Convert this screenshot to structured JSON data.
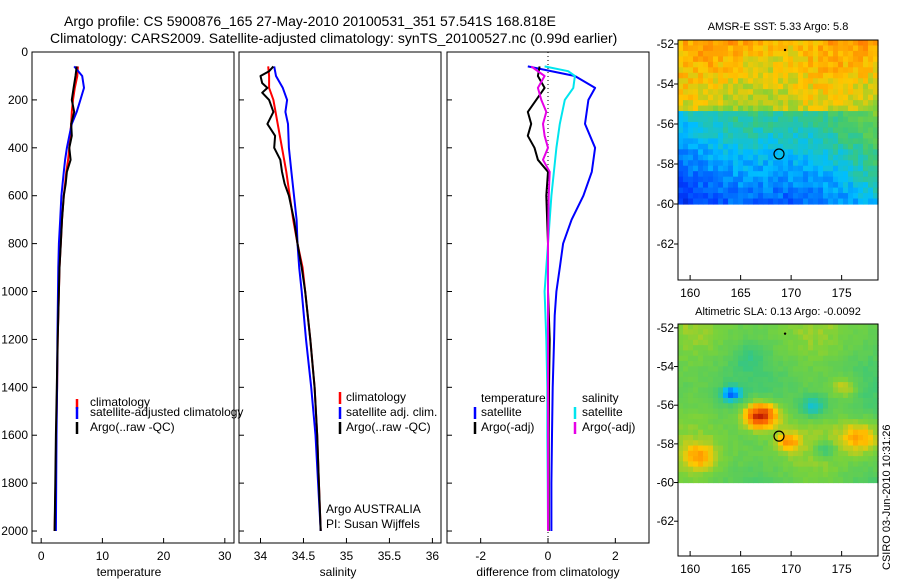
{
  "header": {
    "line1": "Argo profile: CS 5900876_165 27-May-2010 20100531_351 57.541S 168.818E",
    "line2": "Climatology: CARS2009. Satellite-adjusted climatology: synTS_20100527.nc (0.99d earlier)"
  },
  "side_label": "CSIRO 03-Jun-2010 10:31:26",
  "depth_ticks": [
    "0",
    "200",
    "400",
    "600",
    "800",
    "1000",
    "1200",
    "1400",
    "1600",
    "1800",
    "2000"
  ],
  "colors": {
    "climatology": "#ff0000",
    "satellite": "#0000ff",
    "argo": "#000000",
    "sat_salinity": "#00e5ee",
    "argo_salinity": "#e600e6"
  },
  "chart_data": [
    {
      "id": "temperature",
      "type": "line",
      "xlabel": "temperature",
      "xlim": [
        -1.5,
        31.5
      ],
      "ylim": [
        2050,
        0
      ],
      "xticks": [
        "0",
        "10",
        "20",
        "30"
      ],
      "legend": [
        "climatology",
        "satellite-adjusted climatology",
        "Argo(..raw -QC)"
      ],
      "series": [
        {
          "name": "climatology",
          "depth": [
            60,
            100,
            150,
            200,
            250,
            300,
            350,
            400,
            450,
            500,
            550,
            600,
            700,
            800,
            900,
            1000,
            1200,
            1400,
            1600,
            1800,
            2000
          ],
          "values": [
            6.0,
            5.9,
            5.5,
            5.2,
            5.0,
            4.9,
            4.7,
            4.6,
            4.4,
            4.1,
            3.9,
            3.7,
            3.4,
            3.2,
            3.0,
            2.9,
            2.7,
            2.6,
            2.45,
            2.35,
            2.2
          ]
        },
        {
          "name": "satellite-adjusted climatology",
          "depth": [
            60,
            100,
            150,
            200,
            250,
            300,
            350,
            400,
            450,
            500,
            550,
            600,
            700,
            800,
            900,
            1000,
            1200,
            1400,
            1600,
            1800,
            2000
          ],
          "values": [
            5.4,
            6.7,
            7.0,
            6.4,
            5.8,
            5.0,
            4.6,
            4.2,
            3.9,
            3.7,
            3.5,
            3.3,
            3.1,
            2.9,
            2.8,
            2.75,
            2.65,
            2.6,
            2.5,
            2.45,
            2.4
          ]
        },
        {
          "name": "Argo(..raw -QC)",
          "depth": [
            60,
            100,
            150,
            200,
            250,
            300,
            350,
            400,
            450,
            500,
            550,
            600,
            700,
            800,
            900,
            1000,
            1200,
            1400,
            1600,
            1800,
            2000
          ],
          "values": [
            5.8,
            5.6,
            5.3,
            5.0,
            5.4,
            4.9,
            5.0,
            4.6,
            4.8,
            4.2,
            4.0,
            3.7,
            3.4,
            3.2,
            3.0,
            2.9,
            2.7,
            2.55,
            2.4,
            2.3,
            2.2
          ]
        }
      ]
    },
    {
      "id": "salinity",
      "type": "line",
      "xlabel": "salinity",
      "xlim": [
        33.75,
        36.1
      ],
      "ylim": [
        2050,
        0
      ],
      "xticks": [
        "34",
        "34.5",
        "35",
        "35.5",
        "36"
      ],
      "legend": [
        "climatology",
        "satellite adj. clim.",
        "Argo(..raw -QC)"
      ],
      "annotation": [
        "Argo AUSTRALIA",
        "PI: Susan Wijffels"
      ],
      "series": [
        {
          "name": "climatology",
          "depth": [
            60,
            100,
            150,
            200,
            300,
            400,
            500,
            600,
            700,
            800,
            900,
            1000,
            1200,
            1400,
            1600,
            1800,
            2000
          ],
          "values": [
            34.09,
            34.1,
            34.1,
            34.15,
            34.2,
            34.25,
            34.3,
            34.34,
            34.38,
            34.43,
            34.49,
            34.52,
            34.58,
            34.63,
            34.66,
            34.68,
            34.7
          ]
        },
        {
          "name": "satellite adj. clim.",
          "depth": [
            60,
            100,
            150,
            200,
            250,
            300,
            400,
            500,
            600,
            700,
            800,
            900,
            1000,
            1200,
            1400,
            1600,
            1800,
            2000
          ],
          "values": [
            34.16,
            34.18,
            34.26,
            34.31,
            34.29,
            34.32,
            34.33,
            34.36,
            34.39,
            34.42,
            34.43,
            34.45,
            34.48,
            34.53,
            34.59,
            34.64,
            34.67,
            34.7
          ]
        },
        {
          "name": "Argo(..raw -QC)",
          "depth": [
            60,
            80,
            100,
            130,
            150,
            170,
            200,
            250,
            300,
            350,
            400,
            450,
            500,
            550,
            600,
            700,
            800,
            900,
            1000,
            1200,
            1400,
            1600,
            1800,
            2000
          ],
          "values": [
            34.15,
            34.1,
            34.0,
            34.02,
            34.08,
            34.02,
            34.1,
            34.15,
            34.08,
            34.17,
            34.16,
            34.23,
            34.25,
            34.28,
            34.33,
            34.39,
            34.43,
            34.48,
            34.52,
            34.58,
            34.63,
            34.66,
            34.68,
            34.7
          ]
        }
      ]
    },
    {
      "id": "difference",
      "type": "line",
      "xlabel": "difference from climatology",
      "xlim": [
        -3.0,
        3.0
      ],
      "ylim": [
        2050,
        0
      ],
      "xticks": [
        "-2",
        "0",
        "2"
      ],
      "legend_left_title": "temperature",
      "legend_right_title": "salinity",
      "legend_left": [
        "satellite",
        "Argo(-adj)"
      ],
      "legend_right": [
        "satellite",
        "Argo(-adj)"
      ],
      "series": [
        {
          "name": "temperature satellite",
          "depth": [
            60,
            100,
            150,
            200,
            300,
            400,
            500,
            600,
            700,
            800,
            900,
            1000,
            1100,
            1200,
            1400,
            1600,
            1800,
            2000
          ],
          "values": [
            -0.6,
            0.8,
            1.4,
            1.2,
            1.1,
            1.4,
            1.3,
            1.05,
            0.7,
            0.45,
            0.35,
            0.25,
            0.2,
            0.18,
            0.14,
            0.12,
            0.1,
            0.1
          ]
        },
        {
          "name": "temperature Argo(-adj)",
          "depth": [
            60,
            100,
            150,
            200,
            250,
            300,
            350,
            400,
            450,
            500,
            600,
            800,
            1000,
            1200,
            1400,
            1600,
            1800,
            2000
          ],
          "values": [
            -0.25,
            -0.3,
            -0.1,
            -0.35,
            -0.6,
            -0.5,
            -0.6,
            -0.4,
            -0.3,
            0.0,
            -0.05,
            0.0,
            0.0,
            0.05,
            0.03,
            0.02,
            0.02,
            0.02
          ]
        },
        {
          "name": "salinity satellite",
          "depth": [
            60,
            80,
            100,
            150,
            200,
            300,
            400,
            600,
            800,
            900,
            1000,
            1200,
            1400,
            1600,
            1800,
            2000
          ],
          "values": [
            -0.1,
            0.6,
            0.8,
            0.75,
            0.5,
            0.35,
            0.25,
            0.1,
            0.0,
            -0.05,
            -0.1,
            -0.05,
            -0.02,
            -0.02,
            -0.01,
            0.0
          ]
        },
        {
          "name": "salinity Argo(-adj)",
          "depth": [
            60,
            100,
            150,
            200,
            250,
            300,
            350,
            400,
            450,
            500,
            600,
            800,
            1000,
            1200,
            1400,
            1600,
            1800,
            2000
          ],
          "values": [
            -0.5,
            -0.1,
            -0.3,
            -0.2,
            -0.05,
            -0.15,
            -0.1,
            0.0,
            -0.15,
            0.05,
            0.02,
            0.0,
            0.0,
            0.0,
            0.0,
            0.0,
            0.0,
            0.0
          ]
        }
      ]
    },
    {
      "id": "sst_map",
      "type": "heatmap",
      "title": "AMSR-E SST: 5.33 Argo: 5.8",
      "xlim": [
        158.8,
        178.6
      ],
      "ylim": [
        -63.8,
        -51.8
      ],
      "data_lat_bottom": -60,
      "xticks": [
        "160",
        "165",
        "170",
        "175"
      ],
      "yticks": [
        "-52",
        "-54",
        "-56",
        "-58",
        "-60",
        "-62"
      ],
      "marker": {
        "lon": 168.8,
        "lat": -57.5
      }
    },
    {
      "id": "sla_map",
      "type": "heatmap",
      "title": "Altimetric SLA: 0.13 Argo: -0.0092",
      "xlim": [
        158.8,
        178.6
      ],
      "ylim": [
        -63.8,
        -51.8
      ],
      "data_lat_bottom": -60,
      "xticks": [
        "160",
        "165",
        "170",
        "175"
      ],
      "yticks": [
        "-52",
        "-54",
        "-56",
        "-58",
        "-60",
        "-62"
      ],
      "marker": {
        "lon": 168.8,
        "lat": -57.6
      }
    }
  ]
}
